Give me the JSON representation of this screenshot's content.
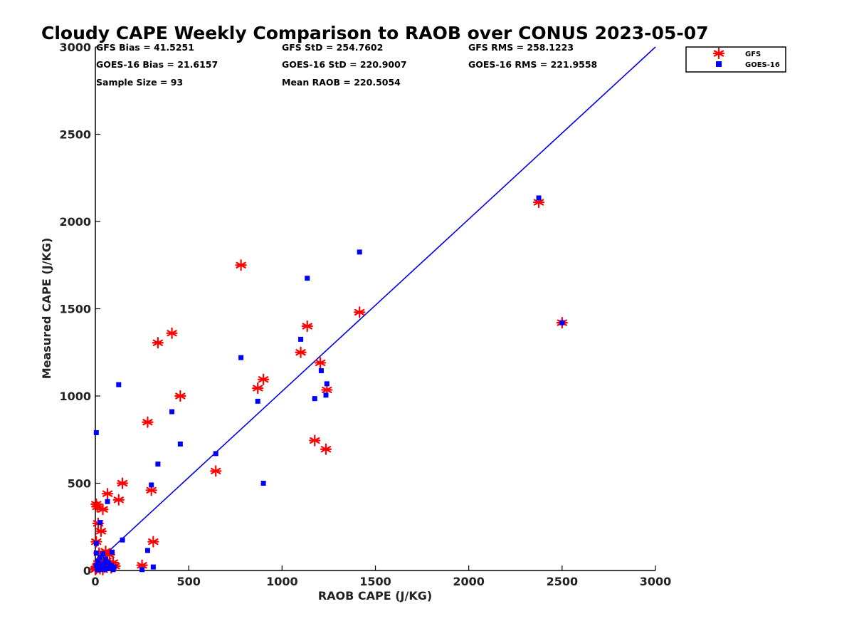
{
  "chart_data": {
    "type": "scatter",
    "title": "Cloudy CAPE Weekly Comparison to RAOB over CONUS 2023-05-07",
    "xlabel": "RAOB CAPE (J/KG)",
    "ylabel": "Measured CAPE (J/KG)",
    "xlim": [
      0,
      3000
    ],
    "ylim": [
      0,
      3000
    ],
    "xticks": [
      0,
      500,
      1000,
      1500,
      2000,
      2500,
      3000
    ],
    "yticks": [
      0,
      500,
      1000,
      1500,
      2000,
      2500,
      3000
    ],
    "grid": false,
    "legend_position": "outside-top-right",
    "stats": {
      "gfs_bias": "GFS Bias = 41.5251",
      "gfs_std": "GFS StD = 254.7602",
      "gfs_rms": "GFS RMS = 258.1223",
      "goes_bias": "GOES-16 Bias = 21.6157",
      "goes_std": "GOES-16 StD = 220.9007",
      "goes_rms": "GOES-16 RMS = 221.9558",
      "sample_size": "Sample Size = 93",
      "mean_raob": "Mean RAOB = 220.5054"
    },
    "reference_line": {
      "name": "1:1 fit",
      "color": "#0000ee",
      "x": [
        0,
        3000
      ],
      "y": [
        40,
        3000
      ]
    },
    "series": [
      {
        "name": "GFS",
        "marker": "asterisk",
        "color": "#ff0000",
        "points": [
          [
            2375,
            2110
          ],
          [
            2500,
            1420
          ],
          [
            1415,
            1480
          ],
          [
            1135,
            1400
          ],
          [
            1100,
            1250
          ],
          [
            1205,
            1190
          ],
          [
            1240,
            1035
          ],
          [
            900,
            1095
          ],
          [
            870,
            1045
          ],
          [
            1175,
            745
          ],
          [
            1235,
            695
          ],
          [
            780,
            1750
          ],
          [
            410,
            1360
          ],
          [
            335,
            1305
          ],
          [
            455,
            1000
          ],
          [
            280,
            850
          ],
          [
            645,
            570
          ],
          [
            300,
            460
          ],
          [
            310,
            165
          ],
          [
            145,
            500
          ],
          [
            125,
            405
          ],
          [
            65,
            440
          ],
          [
            40,
            350
          ],
          [
            30,
            225
          ],
          [
            15,
            270
          ],
          [
            5,
            380
          ],
          [
            10,
            365
          ],
          [
            5,
            165
          ],
          [
            55,
            110
          ],
          [
            75,
            90
          ],
          [
            20,
            100
          ],
          [
            95,
            45
          ],
          [
            105,
            25
          ],
          [
            85,
            15
          ],
          [
            60,
            55
          ],
          [
            35,
            60
          ],
          [
            250,
            30
          ],
          [
            15,
            40
          ],
          [
            10,
            20
          ],
          [
            5,
            10
          ],
          [
            25,
            10
          ],
          [
            40,
            5
          ],
          [
            0,
            5
          ],
          [
            30,
            30
          ],
          [
            50,
            20
          ]
        ]
      },
      {
        "name": "GOES-16",
        "marker": "square",
        "color": "#0000ff",
        "points": [
          [
            2375,
            2135
          ],
          [
            2500,
            1420
          ],
          [
            1415,
            1825
          ],
          [
            1135,
            1675
          ],
          [
            1100,
            1325
          ],
          [
            1210,
            1145
          ],
          [
            1240,
            1070
          ],
          [
            1235,
            1005
          ],
          [
            1175,
            985
          ],
          [
            870,
            970
          ],
          [
            780,
            1220
          ],
          [
            900,
            500
          ],
          [
            645,
            670
          ],
          [
            455,
            725
          ],
          [
            410,
            910
          ],
          [
            335,
            610
          ],
          [
            300,
            490
          ],
          [
            125,
            1065
          ],
          [
            5,
            790
          ],
          [
            280,
            115
          ],
          [
            310,
            20
          ],
          [
            250,
            5
          ],
          [
            145,
            175
          ],
          [
            65,
            395
          ],
          [
            25,
            275
          ],
          [
            5,
            155
          ],
          [
            90,
            105
          ],
          [
            70,
            45
          ],
          [
            55,
            65
          ],
          [
            40,
            95
          ],
          [
            35,
            30
          ],
          [
            20,
            20
          ],
          [
            10,
            5
          ],
          [
            50,
            5
          ],
          [
            75,
            15
          ],
          [
            95,
            5
          ],
          [
            100,
            20
          ],
          [
            15,
            55
          ],
          [
            5,
            100
          ],
          [
            25,
            75
          ],
          [
            45,
            40
          ],
          [
            5,
            30
          ],
          [
            60,
            10
          ],
          [
            85,
            30
          ],
          [
            30,
            5
          ]
        ]
      }
    ]
  }
}
